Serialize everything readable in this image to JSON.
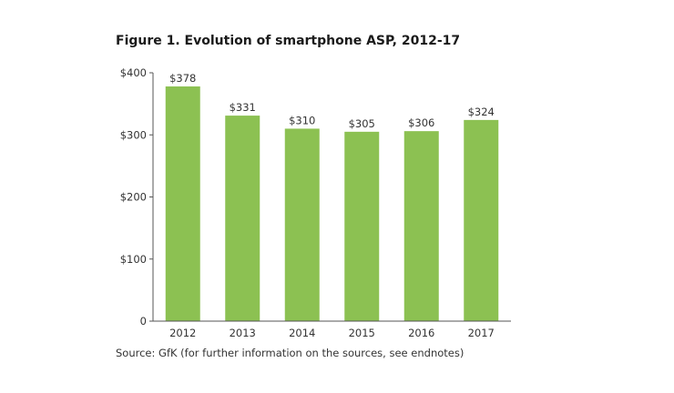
{
  "chart_data": {
    "type": "bar",
    "title": "Figure 1. Evolution of smartphone ASP, 2012-17",
    "source": "Source: GfK (for further information on the sources, see endnotes)",
    "categories": [
      "2012",
      "2013",
      "2014",
      "2015",
      "2016",
      "2017"
    ],
    "values": [
      378,
      331,
      310,
      305,
      306,
      324
    ],
    "data_labels": [
      "$378",
      "$331",
      "$310",
      "$305",
      "$306",
      "$324"
    ],
    "xlabel": "",
    "ylabel": "",
    "ylim": [
      0,
      400
    ],
    "yticks": [
      0,
      100,
      200,
      300,
      400
    ],
    "ytick_labels": [
      "0",
      "$100",
      "$200",
      "$300",
      "$400"
    ],
    "grid": false,
    "legend": "none",
    "bar_color": "#8cc152"
  }
}
